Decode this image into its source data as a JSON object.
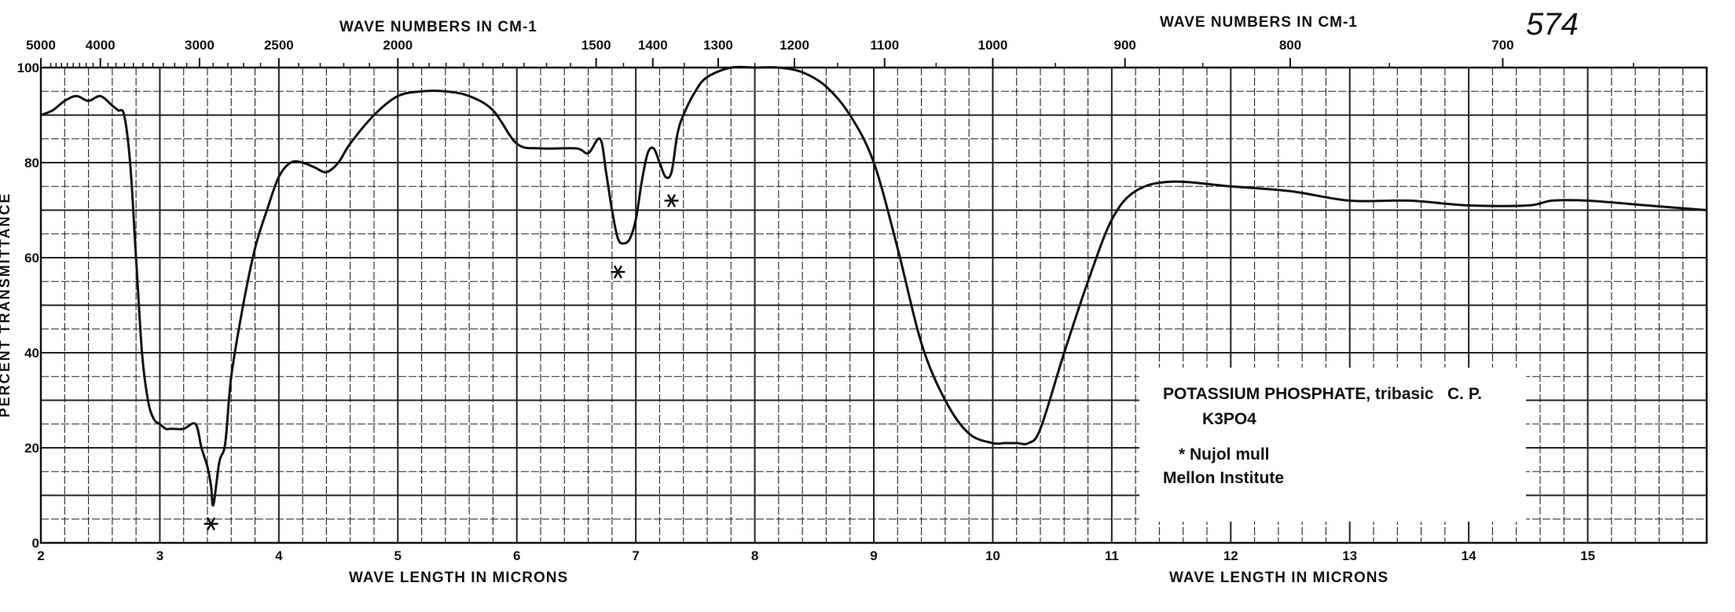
{
  "catalog_number": "574",
  "chart_data": {
    "type": "line",
    "top_axis_title_left": "WAVE NUMBERS IN CM-1",
    "top_axis_title_right": "WAVE NUMBERS IN CM-1",
    "bottom_axis_title_left": "WAVE LENGTH IN MICRONS",
    "bottom_axis_title_right": "WAVE LENGTH IN MICRONS",
    "ylabel": "PERCENT TRANSMITTANCE",
    "xlim": [
      2,
      16
    ],
    "ylim": [
      0,
      100
    ],
    "grid": true,
    "x_tick_labels": [
      {
        "x": 2,
        "label": "2"
      },
      {
        "x": 3,
        "label": "3"
      },
      {
        "x": 4,
        "label": "4"
      },
      {
        "x": 5,
        "label": "5"
      },
      {
        "x": 6,
        "label": "6"
      },
      {
        "x": 7,
        "label": "7"
      },
      {
        "x": 8,
        "label": "8"
      },
      {
        "x": 9,
        "label": "9"
      },
      {
        "x": 10,
        "label": "10"
      },
      {
        "x": 11,
        "label": "11"
      },
      {
        "x": 12,
        "label": "12"
      },
      {
        "x": 13,
        "label": "13"
      },
      {
        "x": 14,
        "label": "14"
      },
      {
        "x": 15,
        "label": "15"
      }
    ],
    "y_tick_labels": [
      {
        "y": 0,
        "label": "0"
      },
      {
        "y": 20,
        "label": "20"
      },
      {
        "y": 40,
        "label": "40"
      },
      {
        "y": 60,
        "label": "60"
      },
      {
        "y": 80,
        "label": "80"
      },
      {
        "y": 100,
        "label": "100"
      }
    ],
    "wavenumber_tick_labels": [
      {
        "wn": 5000,
        "label": "5000"
      },
      {
        "wn": 4000,
        "label": "4000"
      },
      {
        "wn": 3000,
        "label": "3000"
      },
      {
        "wn": 2500,
        "label": "2500"
      },
      {
        "wn": 2000,
        "label": "2000"
      },
      {
        "wn": 1500,
        "label": "1500"
      },
      {
        "wn": 1400,
        "label": "1400"
      },
      {
        "wn": 1300,
        "label": "1300"
      },
      {
        "wn": 1200,
        "label": "1200"
      },
      {
        "wn": 1100,
        "label": "1100"
      },
      {
        "wn": 1000,
        "label": "1000"
      },
      {
        "wn": 900,
        "label": "900"
      },
      {
        "wn": 800,
        "label": "800"
      },
      {
        "wn": 700,
        "label": "700"
      }
    ],
    "series": [
      {
        "x": [
          2.0,
          2.1,
          2.2,
          2.3,
          2.4,
          2.5,
          2.6,
          2.65,
          2.7,
          2.75,
          2.8,
          2.85,
          2.9,
          2.95,
          3.0,
          3.05,
          3.1,
          3.2,
          3.3,
          3.35,
          3.4,
          3.43,
          3.45,
          3.5,
          3.55,
          3.6,
          3.7,
          3.8,
          3.9,
          4.0,
          4.1,
          4.2,
          4.3,
          4.4,
          4.5,
          4.6,
          4.8,
          5.0,
          5.2,
          5.4,
          5.6,
          5.8,
          6.0,
          6.2,
          6.5,
          6.6,
          6.7,
          6.75,
          6.8,
          6.85,
          6.9,
          6.95,
          7.0,
          7.05,
          7.1,
          7.15,
          7.2,
          7.25,
          7.3,
          7.35,
          7.4,
          7.5,
          7.6,
          7.8,
          8.0,
          8.2,
          8.4,
          8.6,
          8.8,
          9.0,
          9.2,
          9.4,
          9.6,
          9.8,
          10.0,
          10.1,
          10.2,
          10.3,
          10.4,
          10.6,
          10.8,
          11.0,
          11.2,
          11.5,
          12.0,
          12.5,
          13.0,
          13.5,
          14.0,
          14.5,
          14.7,
          15.0,
          15.5,
          16.0
        ],
        "y": [
          90,
          91,
          93,
          94,
          93,
          94,
          92,
          91,
          90,
          80,
          60,
          40,
          30,
          26,
          25,
          24,
          24,
          24,
          25,
          20,
          16,
          12,
          8,
          17,
          21,
          35,
          50,
          62,
          70,
          77,
          80,
          80,
          79,
          78,
          80,
          84,
          90,
          94,
          95,
          95,
          94,
          91,
          84,
          83,
          83,
          82,
          85,
          78,
          70,
          64,
          63,
          64,
          68,
          76,
          82,
          83,
          80,
          77,
          78,
          86,
          90,
          95,
          98,
          100,
          100,
          100,
          99,
          96,
          90,
          80,
          62,
          42,
          30,
          23,
          21,
          21,
          21,
          21,
          24,
          40,
          55,
          68,
          74,
          76,
          75,
          74,
          72,
          72,
          71,
          71,
          72,
          72,
          71,
          70
        ]
      }
    ],
    "annotations": [
      {
        "x": 3.43,
        "y": 4,
        "text": "*"
      },
      {
        "x": 6.85,
        "y": 57,
        "text": "*"
      },
      {
        "x": 7.3,
        "y": 72,
        "text": "*"
      }
    ],
    "legend_lines": [
      "POTASSIUM PHOSPHATE, tribasic",
      "C. P.",
      "K3PO4",
      "* Nujol mull",
      "Mellon Institute"
    ]
  }
}
